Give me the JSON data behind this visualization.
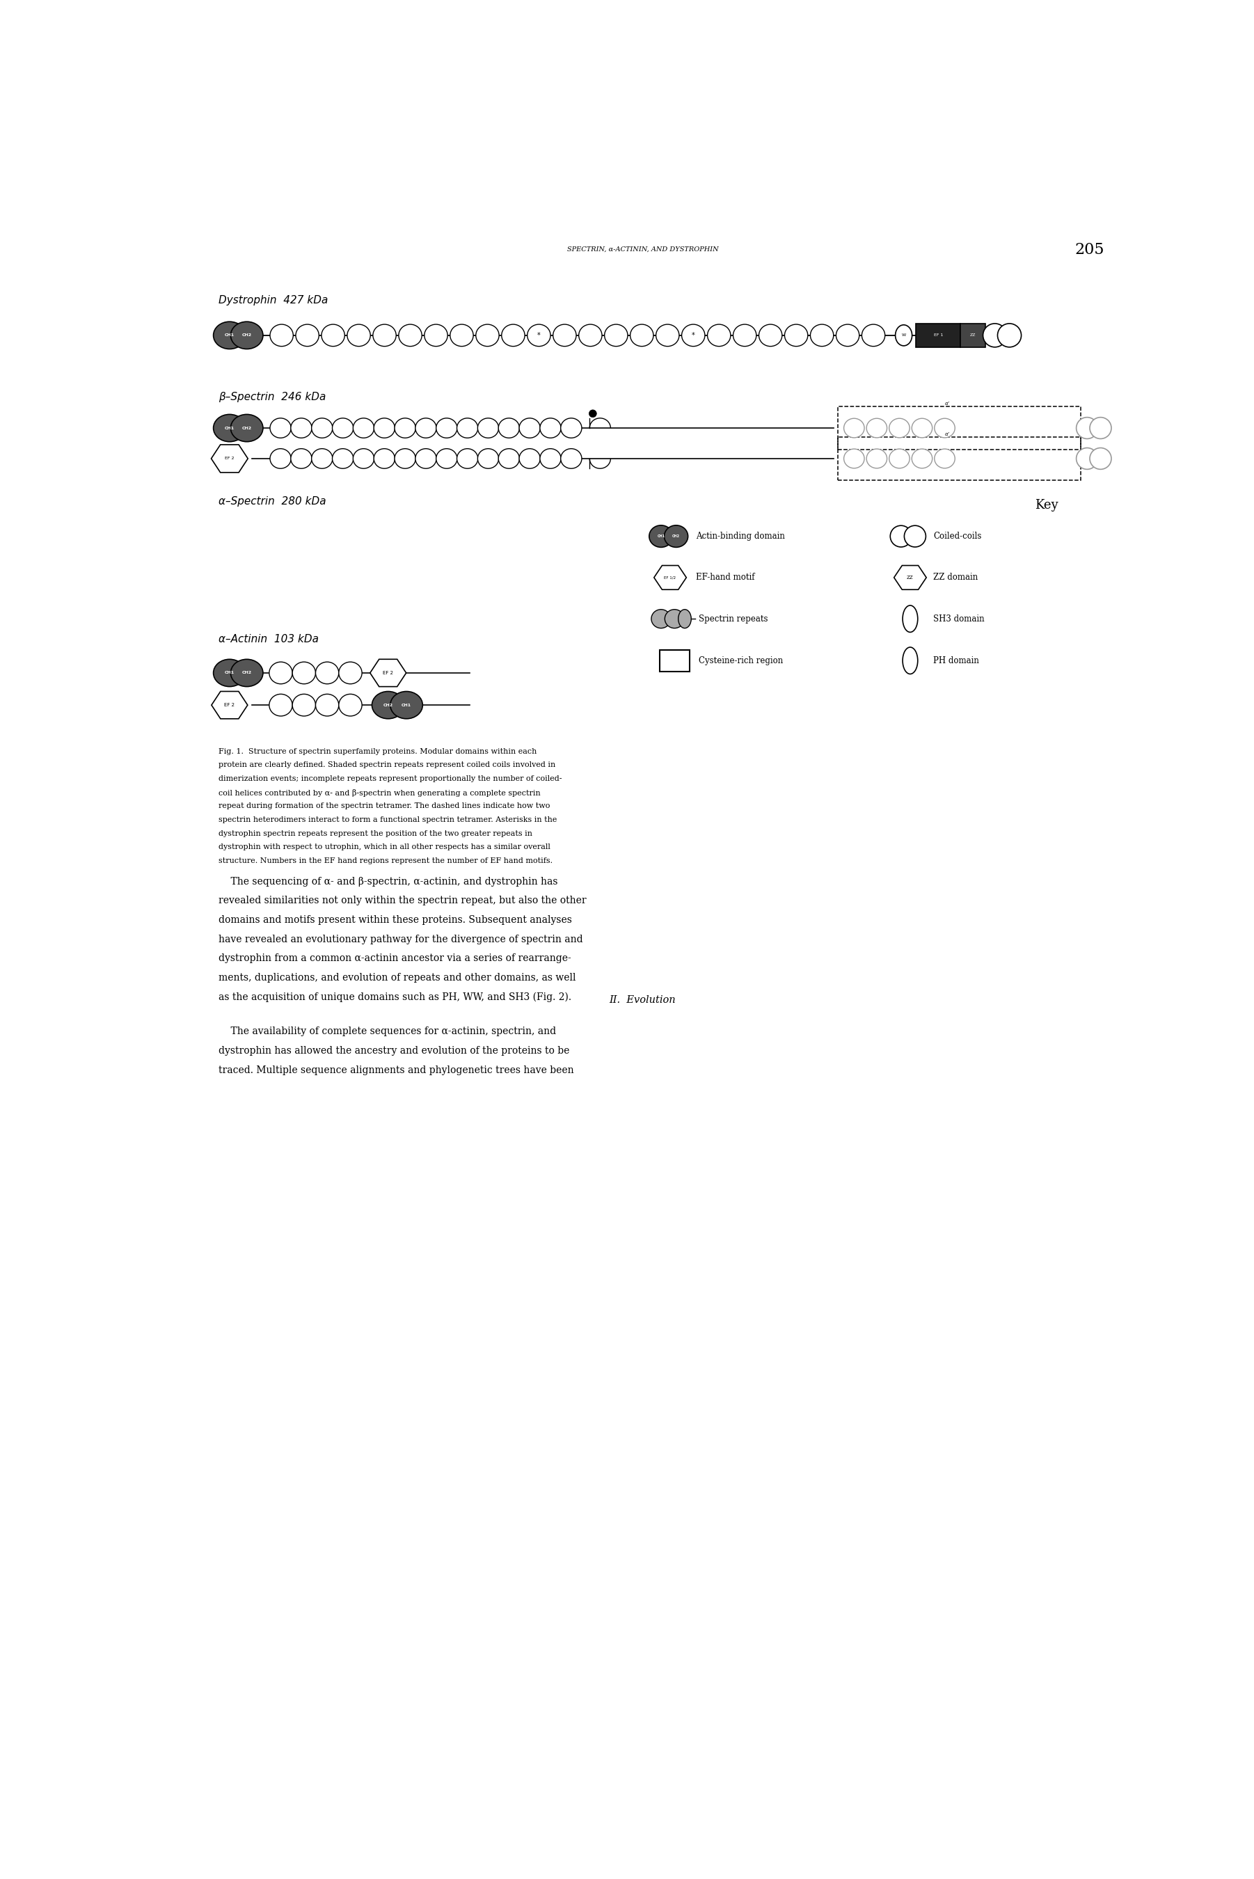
{
  "header_text": "SPECTRIN, α-ACTININ, AND DYSTROPHIN",
  "page_number": "205",
  "key_title": "Key",
  "fig_caption": "Fig. 1.  Structure of spectrin superfamily proteins. Modular domains within each protein are clearly defined. Shaded spectrin repeats represent coiled coils involved in dimerization events; incomplete repeats represent proportionally the number of coiled-coil helices contributed by α- and β-spectrin when generating a complete spectrin repeat during formation of the spectrin tetramer. The dashed lines indicate how two spectrin heterodimers interact to form a functional spectrin tetramer. Asterisks in the dystrophin spectrin repeats represent the position of the two greater repeats in dystrophin with respect to utrophin, which in all other respects has a similar overall structure. Numbers in the EF hand regions represent the number of EF hand motifs.",
  "paragraph_text": "    The sequencing of α- and β-spectrin, α-actinin, and dystrophin has revealed similarities not only within the spectrin repeat, but also the other domains and motifs present within these proteins. Subsequent analyses have revealed an evolutionary pathway for the divergence of spectrin and dystrophin from a common α-actinin ancestor via a series of rearrangements, duplications, and evolution of repeats and other domains, as well as the acquisition of unique domains such as PH, WW, and SH3 (Fig. 2).",
  "section_title": "II.  Evolution",
  "section_paragraph": "    The availability of complete sequences for α-actinin, spectrin, and dystrophin has allowed the ancestry and evolution of the proteins to be traced. Multiple sequence alignments and phylogenetic trees have been"
}
